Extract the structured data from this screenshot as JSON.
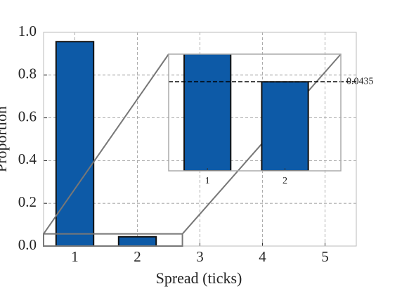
{
  "chart_data": {
    "type": "bar",
    "x_label": "Spread (ticks)",
    "y_label": "Proportion",
    "x": [
      1,
      2
    ],
    "values": [
      0.9565,
      0.0435
    ],
    "color": "#0d5aa7",
    "xlim": [
      0.5,
      5.5
    ],
    "xticks": [
      1,
      2,
      3,
      4,
      5
    ],
    "ylim": [
      0,
      1
    ],
    "yticks": [
      {
        "value": 0,
        "label": "0.0"
      },
      {
        "value": 0.2,
        "label": "0.2"
      },
      {
        "value": 0.4,
        "label": "0.4"
      },
      {
        "value": 0.6,
        "label": "0.6"
      },
      {
        "value": 0.8,
        "label": "0.8"
      },
      {
        "value": 1,
        "label": "1.0"
      }
    ],
    "grid": true,
    "inset": {
      "xlim": [
        0.5,
        2.72
      ],
      "ylim": [
        0,
        0.057
      ],
      "xticks": [
        1,
        2
      ],
      "reference_line": 0.0435
    }
  }
}
